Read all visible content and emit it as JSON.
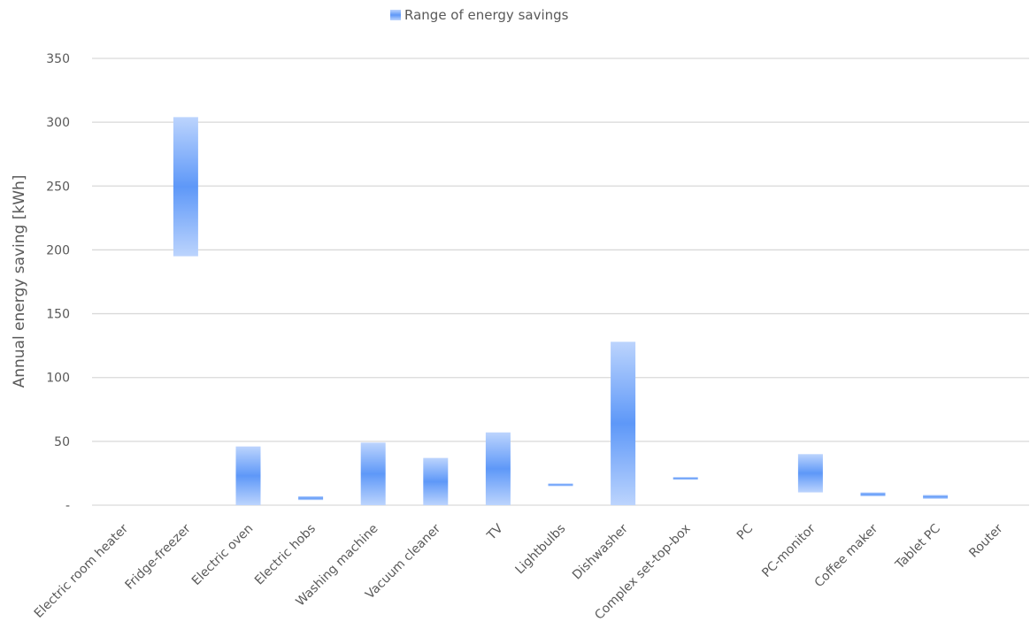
{
  "chart_data": {
    "type": "bar",
    "subtype": "floating-range",
    "title": "",
    "xlabel": "",
    "ylabel": "Annual energy saving [kWh]",
    "ylim": [
      0,
      350
    ],
    "yticks": [
      0,
      50,
      100,
      150,
      200,
      250,
      300,
      350
    ],
    "ytick_labels": [
      "-",
      "50",
      "100",
      "150",
      "200",
      "250",
      "300",
      "350"
    ],
    "grid": true,
    "legend": "top-center",
    "categories": [
      "Electric room heater",
      "Fridge-freezer",
      "Electric oven",
      "Electric hobs",
      "Washing machine",
      "Vacuum cleaner",
      "TV",
      "Lightbulbs",
      "Dishwasher",
      "Complex set-top-box",
      "PC",
      "PC-monitor",
      "Coffee maker",
      "Tablet PC",
      "Router"
    ],
    "series": [
      {
        "name": "Range of energy savings",
        "color": "#4f8ff7",
        "ranges": [
          null,
          [
            195,
            304
          ],
          [
            0,
            46
          ],
          [
            4,
            7
          ],
          [
            0,
            49
          ],
          [
            0,
            37
          ],
          [
            0,
            57
          ],
          [
            15,
            17
          ],
          [
            0,
            128
          ],
          [
            20,
            22
          ],
          null,
          [
            10,
            40
          ],
          [
            7,
            10
          ],
          [
            5,
            8
          ],
          null
        ]
      }
    ]
  }
}
